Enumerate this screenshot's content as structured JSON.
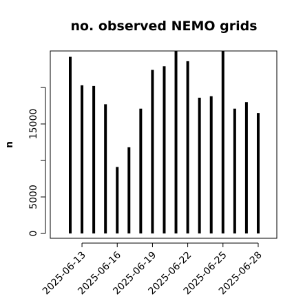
{
  "chart_data": {
    "type": "bar",
    "title": "no. observed NEMO grids",
    "xlabel": "",
    "ylabel": "n",
    "categories": [
      "2025-06-12",
      "2025-06-13",
      "2025-06-14",
      "2025-06-15",
      "2025-06-16",
      "2025-06-17",
      "2025-06-18",
      "2025-06-19",
      "2025-06-20",
      "2025-06-21",
      "2025-06-22",
      "2025-06-23",
      "2025-06-24",
      "2025-06-25",
      "2025-06-26",
      "2025-06-27",
      "2025-06-28"
    ],
    "values": [
      24200,
      20300,
      20200,
      17700,
      9100,
      11800,
      17100,
      22400,
      22900,
      25600,
      23600,
      18600,
      18800,
      25600,
      17100,
      18000,
      16500
    ],
    "ylim": [
      0,
      25600
    ],
    "y_ticks": [
      0,
      5000,
      10000,
      15000,
      20000
    ],
    "y_tick_labels": [
      "0",
      "5000",
      "",
      "15000",
      ""
    ],
    "x_tick_labels": [
      "2025-06-13",
      "2025-06-16",
      "2025-06-19",
      "2025-06-22",
      "2025-06-25",
      "2025-06-28"
    ],
    "grid": false,
    "legend": "none",
    "bar_color": "#000000"
  }
}
